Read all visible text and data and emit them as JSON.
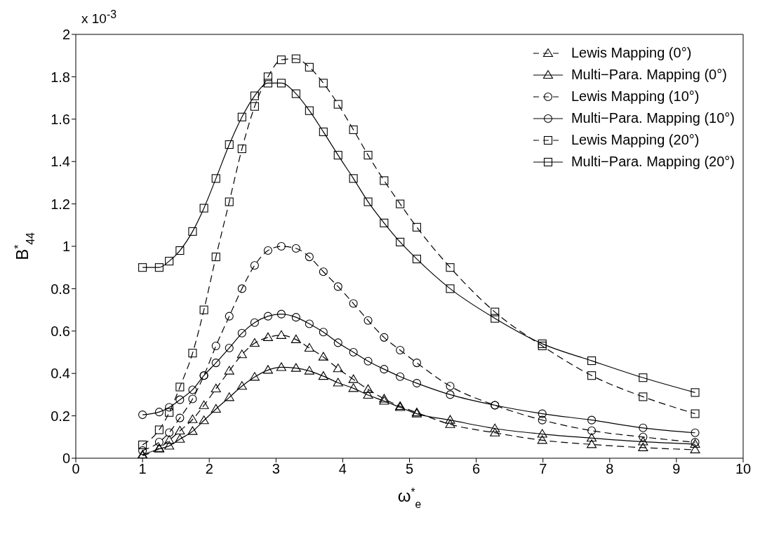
{
  "chart_data": {
    "type": "line",
    "xlabel": "ω$^{*}$$_{e}$",
    "ylabel": "B$^{*}$$_{44}$",
    "annotations": [
      "x 10$^{-3}$"
    ],
    "x": [
      1.0,
      1.25,
      1.4,
      1.56,
      1.75,
      1.92,
      2.1,
      2.3,
      2.49,
      2.68,
      2.88,
      3.08,
      3.3,
      3.5,
      3.71,
      3.93,
      4.16,
      4.38,
      4.62,
      4.86,
      5.11,
      5.61,
      6.28,
      6.99,
      7.73,
      8.5,
      9.28
    ],
    "series": [
      {
        "name": "Lewis Mapping (0°)",
        "color": "#000000",
        "marker": "triangle",
        "line_style": "dashed",
        "values": [
          0.012,
          0.047,
          0.085,
          0.129,
          0.183,
          0.249,
          0.328,
          0.412,
          0.489,
          0.543,
          0.57,
          0.58,
          0.56,
          0.52,
          0.478,
          0.423,
          0.372,
          0.325,
          0.28,
          0.245,
          0.215,
          0.16,
          0.12,
          0.085,
          0.065,
          0.05,
          0.04
        ]
      },
      {
        "name": "Multi−Para. Mapping (0°)",
        "color": "#000000",
        "marker": "triangle",
        "line_style": "solid",
        "values": [
          0.016,
          0.044,
          0.058,
          0.09,
          0.127,
          0.178,
          0.232,
          0.287,
          0.34,
          0.383,
          0.416,
          0.429,
          0.425,
          0.412,
          0.387,
          0.356,
          0.33,
          0.298,
          0.27,
          0.24,
          0.21,
          0.18,
          0.14,
          0.114,
          0.095,
          0.078,
          0.066
        ]
      },
      {
        "name": "Lewis Mapping (10°)",
        "color": "#000000",
        "marker": "circle",
        "line_style": "dashed",
        "values": [
          0.036,
          0.076,
          0.121,
          0.19,
          0.28,
          0.39,
          0.53,
          0.67,
          0.8,
          0.91,
          0.98,
          1.0,
          0.99,
          0.95,
          0.88,
          0.81,
          0.73,
          0.65,
          0.57,
          0.51,
          0.45,
          0.34,
          0.25,
          0.18,
          0.13,
          0.1,
          0.075
        ]
      },
      {
        "name": "Multi−Para. Mapping (10°)",
        "color": "#000000",
        "marker": "circle",
        "line_style": "solid",
        "values": [
          0.205,
          0.218,
          0.24,
          0.276,
          0.323,
          0.39,
          0.45,
          0.52,
          0.59,
          0.64,
          0.67,
          0.68,
          0.665,
          0.634,
          0.595,
          0.545,
          0.5,
          0.458,
          0.42,
          0.385,
          0.354,
          0.3,
          0.25,
          0.21,
          0.18,
          0.143,
          0.12
        ]
      },
      {
        "name": "Lewis Mapping (20°)",
        "color": "#000000",
        "marker": "square",
        "line_style": "dashed",
        "values": [
          0.063,
          0.134,
          0.216,
          0.336,
          0.496,
          0.7,
          0.95,
          1.21,
          1.46,
          1.66,
          1.8,
          1.88,
          1.885,
          1.845,
          1.77,
          1.67,
          1.55,
          1.43,
          1.31,
          1.2,
          1.09,
          0.9,
          0.69,
          0.53,
          0.39,
          0.29,
          0.21
        ]
      },
      {
        "name": "Multi−Para. Mapping (20°)",
        "color": "#000000",
        "marker": "square",
        "line_style": "solid",
        "values": [
          0.9,
          0.9,
          0.93,
          0.98,
          1.07,
          1.18,
          1.32,
          1.48,
          1.61,
          1.71,
          1.77,
          1.77,
          1.72,
          1.64,
          1.54,
          1.43,
          1.32,
          1.21,
          1.11,
          1.02,
          0.94,
          0.8,
          0.66,
          0.54,
          0.46,
          0.38,
          0.31
        ]
      }
    ],
    "xlim": [
      0,
      10
    ],
    "xticks": [
      0,
      1,
      2,
      3,
      4,
      5,
      6,
      7,
      8,
      9,
      10
    ],
    "ylim": [
      0,
      2
    ],
    "yticks": [
      0,
      0.2,
      0.4,
      0.6,
      0.8,
      1,
      1.2,
      1.4,
      1.6,
      1.8,
      2
    ],
    "grid": false,
    "legend": "top right"
  }
}
